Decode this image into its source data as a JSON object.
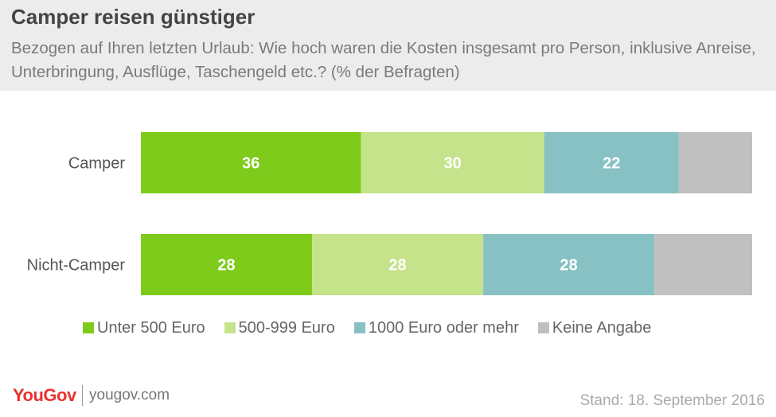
{
  "title": "Camper reisen günstiger",
  "subtitle": "Bezogen auf Ihren letzten Urlaub: Wie hoch waren die Kosten insgesamt pro Person, inklusive Anreise, Unterbringung, Ausflüge, Taschengeld etc.? (% der Befragten)",
  "footer": {
    "logo": "YouGov",
    "url": "yougov.com",
    "date": "Stand: 18. September 2016"
  },
  "chart_data": {
    "type": "bar",
    "orientation": "horizontal",
    "stacked": true,
    "percent_of_total": true,
    "categories": [
      "Camper",
      "Nicht-Camper"
    ],
    "series": [
      {
        "name": "Unter 500 Euro",
        "values": [
          36,
          28
        ],
        "color": "#7ecb1b"
      },
      {
        "name": "500-999 Euro",
        "values": [
          30,
          28
        ],
        "color": "#c5e38b"
      },
      {
        "name": "1000 Euro oder mehr",
        "values": [
          22,
          28
        ],
        "color": "#87c1c3"
      },
      {
        "name": "Keine Angabe",
        "values": [
          12,
          16
        ],
        "color": "#c0c0c0"
      }
    ],
    "labeled_series": [
      "Unter 500 Euro",
      "500-999 Euro",
      "1000 Euro oder mehr"
    ],
    "legend_position": "bottom",
    "grid": false
  }
}
